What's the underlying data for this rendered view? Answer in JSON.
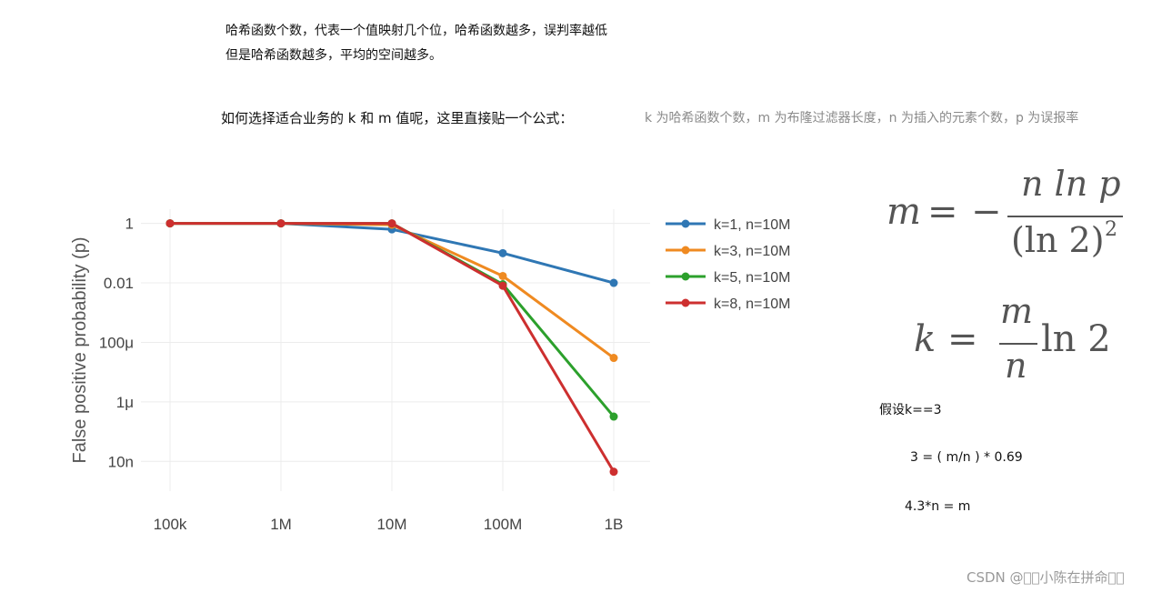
{
  "article": {
    "line1": "哈希函数个数，代表一个值映射几个位，哈希函数越多，误判率越低",
    "line2": "但是哈希函数越多，平均的空间越多。",
    "question": "如何选择适合业务的 k 和 m 值呢，这里直接贴一个公式：",
    "hint": "k 为哈希函数个数，m 为布隆过滤器长度，n 为插入的元素个数，p 为误报率"
  },
  "formulas": {
    "m": {
      "lhs": "m",
      "eq": "=",
      "minus": "−",
      "numerator": "n ln p",
      "denominator": "(ln 2)",
      "exp": "2"
    },
    "k": {
      "lhs": "k",
      "eq": "=",
      "numerator": "m",
      "denominator": "n",
      "tail": "ln 2"
    }
  },
  "calc": {
    "line1": "假设k==3",
    "line2": "3  =  ( m/n ) * 0.69",
    "line3": "4.3*n = m"
  },
  "watermark": "CSDN @\u0000\u0000小陈在拼命\u0000\u0000",
  "chart_data": {
    "type": "line",
    "categories": [
      "100k",
      "1M",
      "10M",
      "100M",
      "1B"
    ],
    "x": [
      100000,
      1000000,
      10000000,
      100000000,
      1000000000
    ],
    "xscale": "log",
    "yscale": "log",
    "ylabel": "False positive probability (p)",
    "xlabel": "",
    "yticks": [
      {
        "value": 1,
        "label": "1"
      },
      {
        "value": 0.01,
        "label": "0.01"
      },
      {
        "value": 0.0001,
        "label": "100μ"
      },
      {
        "value": 1e-06,
        "label": "1μ"
      },
      {
        "value": 1e-08,
        "label": "10n"
      }
    ],
    "ylim": [
      1e-09,
      3
    ],
    "grid": true,
    "legend_position": "right",
    "series": [
      {
        "name": "k=1, n=10M",
        "color": "#2f77b4",
        "values": [
          1,
          1,
          0.63,
          0.1,
          0.01
        ]
      },
      {
        "name": "k=3, n=10M",
        "color": "#ef8a21",
        "values": [
          1,
          1,
          0.9,
          0.017,
          3e-05
        ]
      },
      {
        "name": "k=5, n=10M",
        "color": "#2ca02c",
        "values": [
          1,
          1,
          1,
          0.009,
          3.2e-07
        ]
      },
      {
        "name": "k=8, n=10M",
        "color": "#cd2f2f",
        "values": [
          1,
          1,
          1,
          0.008,
          4.5e-09
        ]
      }
    ]
  }
}
